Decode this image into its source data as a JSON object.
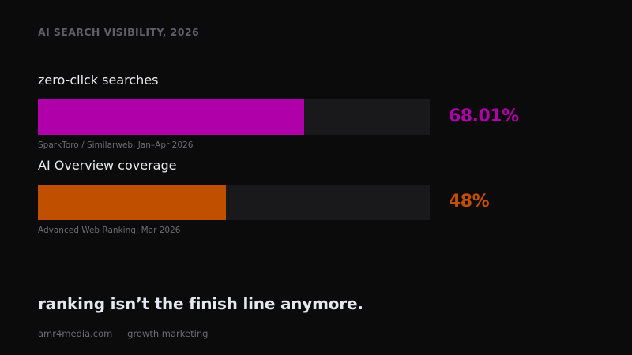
{
  "kicker": "AI SEARCH VISIBILITY, 2026",
  "chart_data": {
    "type": "bar",
    "orientation": "horizontal",
    "xlim": [
      0,
      100
    ],
    "categories": [
      "zero-click searches",
      "AI Overview coverage"
    ],
    "values": [
      68.01,
      48
    ],
    "series": [
      {
        "label": "zero-click searches",
        "value": 68.01,
        "value_label": "68.01%",
        "source": "SparkToro / Similarweb, Jan–Apr 2026",
        "color": "#b000a9"
      },
      {
        "label": "AI Overview coverage",
        "value": 48,
        "value_label": "48%",
        "source": "Advanced Web Ranking, Mar 2026",
        "color": "#c14f00"
      }
    ]
  },
  "colors": {
    "background": "#0b0b0c",
    "track": "#19191c",
    "text": "#e9ebee",
    "muted": "#6b6c72"
  },
  "tagline": "ranking isn’t the finish line anymore.",
  "footer": "amr4media.com — growth marketing"
}
